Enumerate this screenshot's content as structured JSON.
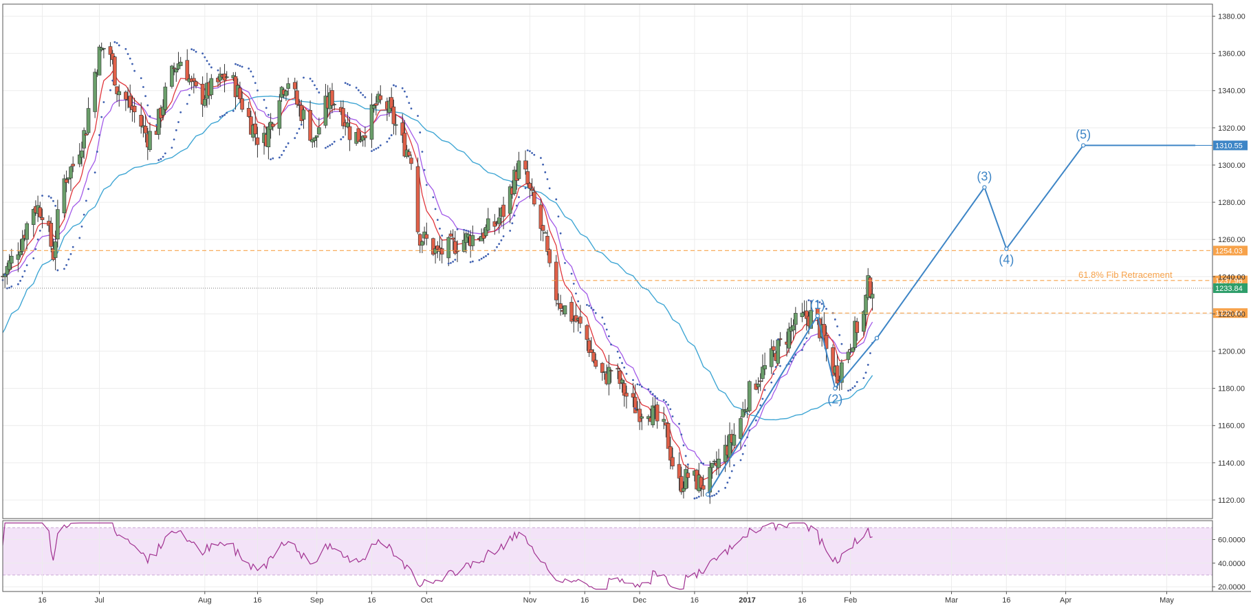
{
  "chart_data": {
    "type": "candlestick",
    "price_axis": {
      "range": [
        1110,
        1385
      ],
      "ticks": [
        "1380.00",
        "1360.00",
        "1340.00",
        "1320.00",
        "1300.00",
        "1280.00",
        "1260.00",
        "1240.00",
        "1220.00",
        "1200.00",
        "1180.00",
        "1160.00",
        "1140.00",
        "1120.00"
      ],
      "tick_values": [
        1380,
        1360,
        1340,
        1320,
        1300,
        1280,
        1260,
        1240,
        1220,
        1200,
        1180,
        1160,
        1140,
        1120
      ]
    },
    "rsi_axis": {
      "range": [
        16,
        76
      ],
      "ticks": [
        "60.0000",
        "40.0000",
        "20.0000"
      ],
      "tick_values": [
        60,
        40,
        20
      ],
      "band": [
        30,
        70
      ]
    },
    "time_axis": {
      "ticks": [
        {
          "label": "16",
          "t": 18,
          "bold": false
        },
        {
          "label": "Jul",
          "t": 44,
          "bold": false
        },
        {
          "label": "Aug",
          "t": 92,
          "bold": false
        },
        {
          "label": "16",
          "t": 116,
          "bold": false
        },
        {
          "label": "Sep",
          "t": 143,
          "bold": false
        },
        {
          "label": "16",
          "t": 168,
          "bold": false
        },
        {
          "label": "Oct",
          "t": 193,
          "bold": false
        },
        {
          "label": "Nov",
          "t": 240,
          "bold": false
        },
        {
          "label": "16",
          "t": 265,
          "bold": false
        },
        {
          "label": "Dec",
          "t": 290,
          "bold": false
        },
        {
          "label": "16",
          "t": 315,
          "bold": false
        },
        {
          "label": "2017",
          "t": 339,
          "bold": true
        },
        {
          "label": "16",
          "t": 364,
          "bold": false
        },
        {
          "label": "Feb",
          "t": 386,
          "bold": false
        },
        {
          "label": "Mar",
          "t": 432,
          "bold": false
        },
        {
          "label": "16",
          "t": 457,
          "bold": false
        },
        {
          "label": "Apr",
          "t": 484,
          "bold": false
        },
        {
          "label": "May",
          "t": 530,
          "bold": false
        }
      ]
    },
    "horizontal_levels": [
      {
        "value": 1254.03,
        "label": "1254.03",
        "style": "dashed",
        "color": "#f7a24a"
      },
      {
        "value": 1237.96,
        "label": "1237.96",
        "style": "dashed",
        "color": "#f7a24a"
      },
      {
        "value": 1220.44,
        "label": "1220.44",
        "style": "dashed",
        "color": "#f7a24a"
      },
      {
        "value": 1310.55,
        "label": "1310.55",
        "style": "solid",
        "color": "#3d85c6"
      }
    ],
    "last_price": {
      "value": 1233.84,
      "label": "1233.84",
      "color": "#2e9e6a"
    },
    "annotation": "61.8% Fib Retracement",
    "elliott_waves": [
      {
        "label": "(1)",
        "t": 371,
        "price": 1219
      },
      {
        "label": "(2)",
        "t": 379,
        "price": 1180
      },
      {
        "label": "(3)",
        "t": 447,
        "price": 1288
      },
      {
        "label": "(4)",
        "t": 457,
        "price": 1255
      },
      {
        "label": "(5)",
        "t": 492,
        "price": 1310.55
      }
    ],
    "wave_path": [
      [
        321,
        1123
      ],
      [
        371,
        1219
      ],
      [
        379,
        1180
      ],
      [
        398,
        1207
      ],
      [
        447,
        1288
      ],
      [
        457,
        1255
      ],
      [
        492,
        1310.55
      ],
      [
        543,
        1310.55
      ]
    ],
    "colors": {
      "up": "#6a9e6a",
      "down": "#e06048",
      "ema_fast": "#e0353b",
      "ema_slow": "#a259e8",
      "sma": "#3fa6d4",
      "psar": "#3d5fb0",
      "rsi": "#a03090",
      "rsi_band": "#f3e3f8",
      "wave": "#3d85c6"
    }
  }
}
